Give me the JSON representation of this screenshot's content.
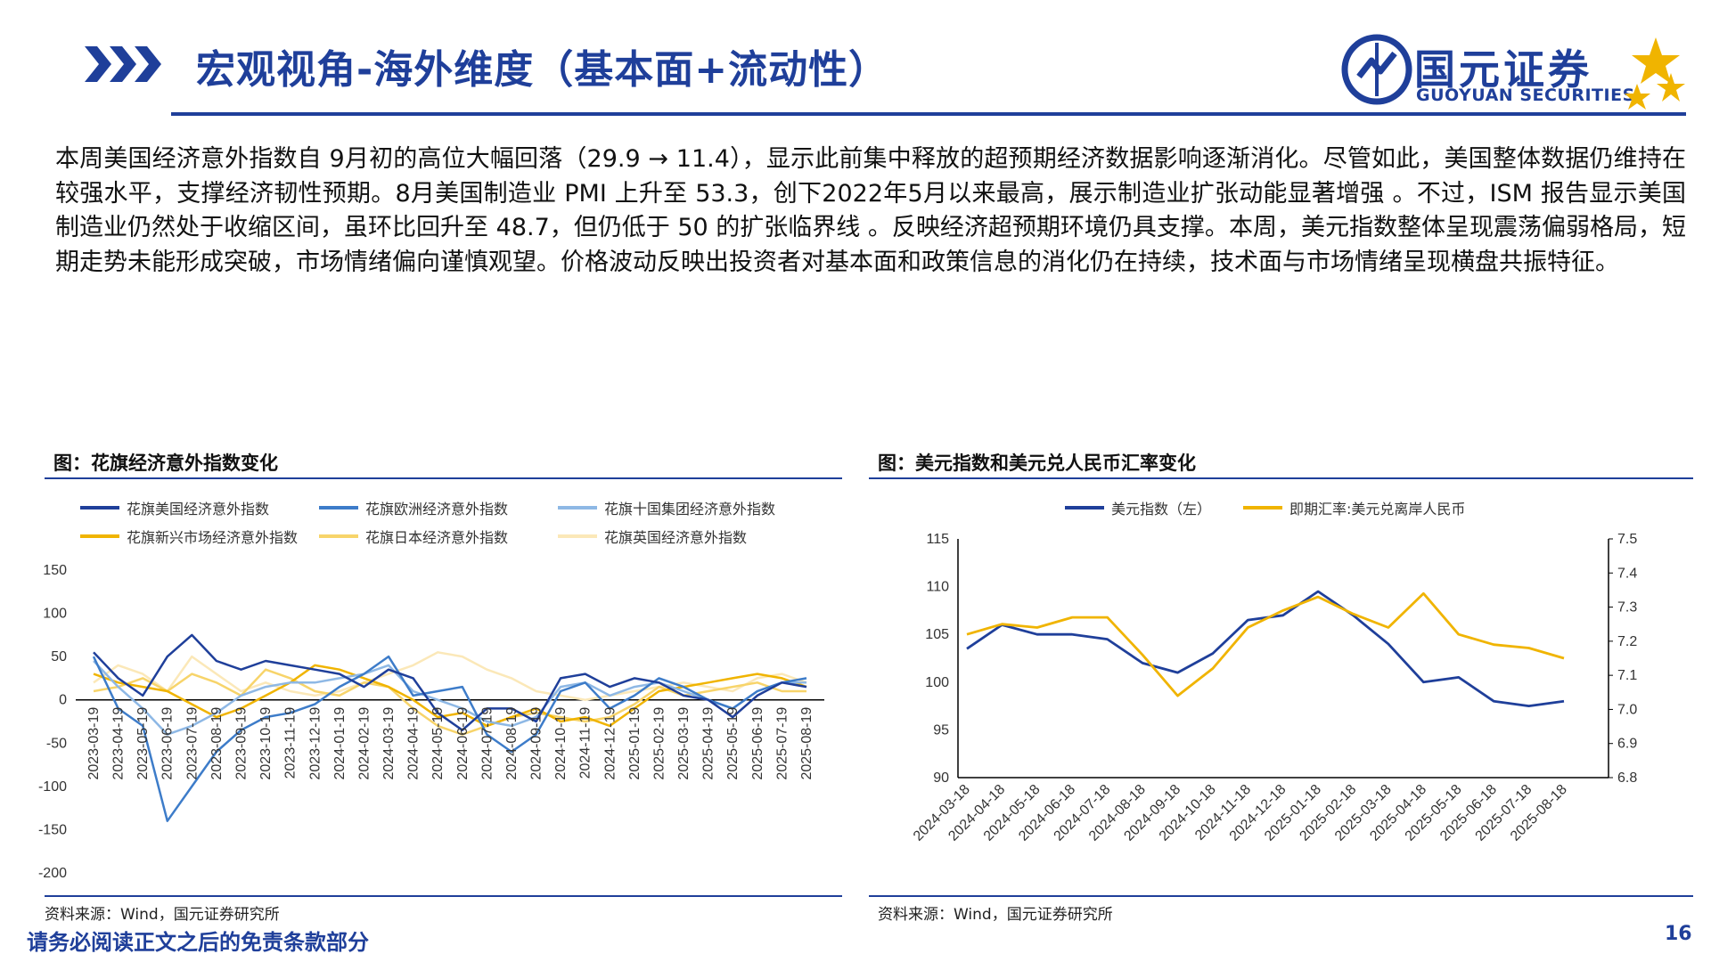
{
  "header": {
    "title": "宏观视角-海外维度（基本面+流动性）",
    "logo_cn": "国元证券",
    "logo_en": "GUOYUAN SECURITIES"
  },
  "body_text": "本周美国经济意外指数自 9月初的高位大幅回落（29.9 → 11.4），显示此前集中释放的超预期经济数据影响逐渐消化。尽管如此，美国整体数据仍维持在较强水平，支撑经济韧性预期。8月美国制造业 PMI 上升至 53.3，创下2022年5月以来最高，展示制造业扩张动能显著增强 。不过，ISM 报告显示美国制造业仍然处于收缩区间，虽环比回升至 48.7，但仍低于 50 的扩张临界线 。反映经济超预期环境仍具支撑。本周，美元指数整体呈现震荡偏弱格局，短期走势未能形成突破，市场情绪偏向谨慎观望。价格波动反映出投资者对基本面和政策信息的消化仍在持续，技术面与市场情绪呈现横盘共振特征。",
  "left_panel": {
    "title": "图：花旗经济意外指数变化",
    "source": "资料来源：Wind，国元证券研究所"
  },
  "right_panel": {
    "title": "图：美元指数和美元兑人民币汇率变化",
    "source": "资料来源：Wind，国元证券研究所"
  },
  "footer": {
    "disclaimer": "请务必阅读正文之后的免责条款部分",
    "page_number": "16"
  },
  "colors": {
    "brand_blue": "#1f3f9a",
    "gold": "#f0b400"
  },
  "chart_data": [
    {
      "type": "line",
      "title": "图：花旗经济意外指数变化",
      "ylim": [
        -200,
        150
      ],
      "yticks": [
        150,
        100,
        50,
        0,
        -50,
        -100,
        -150,
        -200
      ],
      "categories": [
        "2023-03-19",
        "2023-04-19",
        "2023-05-19",
        "2023-06-19",
        "2023-07-19",
        "2023-08-19",
        "2023-09-19",
        "2023-10-19",
        "2023-11-19",
        "2023-12-19",
        "2024-01-19",
        "2024-02-19",
        "2024-03-19",
        "2024-04-19",
        "2024-05-19",
        "2024-06-19",
        "2024-07-19",
        "2024-08-19",
        "2024-09-19",
        "2024-10-19",
        "2024-11-19",
        "2024-12-19",
        "2025-01-19",
        "2025-02-19",
        "2025-03-19",
        "2025-04-19",
        "2025-05-19",
        "2025-06-19",
        "2025-07-19",
        "2025-08-19"
      ],
      "series": [
        {
          "name": "花旗美国经济意外指数",
          "color": "#1f3f9a",
          "values": [
            55,
            25,
            5,
            50,
            75,
            45,
            35,
            45,
            40,
            35,
            30,
            15,
            35,
            25,
            -15,
            -35,
            -10,
            -10,
            -25,
            25,
            30,
            15,
            25,
            20,
            5,
            0,
            -20,
            5,
            20,
            15
          ]
        },
        {
          "name": "花旗欧洲经济意外指数",
          "color": "#3d7cc9",
          "values": [
            50,
            -10,
            -30,
            -140,
            -100,
            -60,
            -35,
            -20,
            -15,
            -5,
            15,
            30,
            50,
            5,
            10,
            15,
            -40,
            -60,
            -40,
            10,
            20,
            -10,
            5,
            25,
            15,
            0,
            -10,
            10,
            20,
            25
          ]
        },
        {
          "name": "花旗十国集团经济意外指数",
          "color": "#8eb8e5",
          "values": [
            45,
            15,
            -10,
            -40,
            -30,
            -15,
            5,
            15,
            20,
            20,
            25,
            30,
            40,
            10,
            0,
            -10,
            -25,
            -30,
            -20,
            15,
            20,
            5,
            15,
            20,
            10,
            0,
            -10,
            10,
            20,
            20
          ]
        },
        {
          "name": "花旗新兴市场经济意外指数",
          "color": "#f0b400",
          "values": [
            30,
            20,
            15,
            10,
            -5,
            -20,
            -10,
            5,
            20,
            40,
            35,
            25,
            15,
            0,
            -20,
            -15,
            -30,
            -20,
            -10,
            -25,
            -20,
            -30,
            -10,
            10,
            15,
            20,
            25,
            30,
            25,
            15
          ]
        },
        {
          "name": "花旗日本经济意外指数",
          "color": "#f7d46a",
          "values": [
            10,
            15,
            25,
            10,
            30,
            20,
            5,
            35,
            25,
            10,
            5,
            20,
            15,
            -10,
            -30,
            -40,
            -30,
            -20,
            -15,
            -20,
            -25,
            -20,
            -5,
            15,
            5,
            10,
            15,
            20,
            10,
            10
          ]
        },
        {
          "name": "花旗英国经济意外指数",
          "color": "#fbe8b8",
          "values": [
            20,
            40,
            30,
            10,
            50,
            30,
            10,
            20,
            10,
            5,
            10,
            20,
            30,
            40,
            55,
            50,
            35,
            25,
            10,
            5,
            0,
            5,
            10,
            15,
            20,
            15,
            10,
            25,
            30,
            20
          ]
        }
      ]
    },
    {
      "type": "line",
      "title": "图：美元指数和美元兑人民币汇率变化",
      "ylim_left": [
        90,
        115
      ],
      "yticks_left": [
        115,
        110,
        105,
        100,
        95,
        90
      ],
      "ylim_right": [
        6.8,
        7.5
      ],
      "yticks_right": [
        "7.5",
        "7.4",
        "7.3",
        "7.2",
        "7.1",
        "7.0",
        "6.9",
        "6.8"
      ],
      "categories": [
        "2024-03-18",
        "2024-04-18",
        "2024-05-18",
        "2024-06-18",
        "2024-07-18",
        "2024-08-18",
        "2024-09-18",
        "2024-10-18",
        "2024-11-18",
        "2024-12-18",
        "2025-01-18",
        "2025-02-18",
        "2025-03-18",
        "2025-04-18",
        "2025-05-18",
        "2025-06-18",
        "2025-07-18",
        "2025-08-18"
      ],
      "series": [
        {
          "name": "美元指数（左）",
          "axis": "left",
          "color": "#1f3f9a",
          "values": [
            103.5,
            106,
            105,
            105,
            104.5,
            102,
            101,
            103,
            106.5,
            107,
            109.5,
            107,
            104,
            100,
            100.5,
            98,
            97.5,
            98
          ]
        },
        {
          "name": "即期汇率:美元兑离岸人民币",
          "axis": "right",
          "color": "#f0b400",
          "values": [
            7.22,
            7.25,
            7.24,
            7.27,
            7.27,
            7.16,
            7.04,
            7.12,
            7.24,
            7.29,
            7.33,
            7.28,
            7.24,
            7.34,
            7.22,
            7.19,
            7.18,
            7.15
          ]
        }
      ]
    }
  ]
}
